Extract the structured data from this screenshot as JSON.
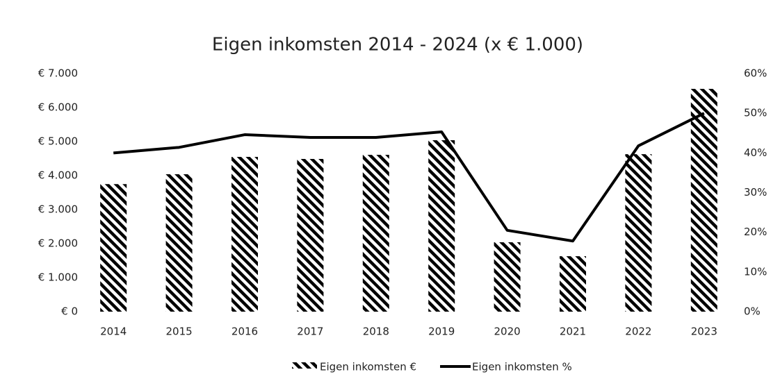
{
  "chart_data": {
    "type": "bar",
    "title": "Eigen inkomsten 2014 - 2024 (x € 1.000)",
    "categories": [
      "2014",
      "2015",
      "2016",
      "2017",
      "2018",
      "2019",
      "2020",
      "2021",
      "2022",
      "2023"
    ],
    "series": [
      {
        "name": "Eigen inkomsten €",
        "type": "bar",
        "color": "#000000",
        "values": [
          3750,
          4040,
          4550,
          4490,
          4610,
          5040,
          2040,
          1630,
          4630,
          6550
        ]
      },
      {
        "name": "Eigen inkomsten %",
        "type": "line",
        "axis": "y2",
        "color": "#000000",
        "values": [
          40.0,
          41.4,
          44.6,
          43.9,
          43.9,
          45.3,
          20.5,
          17.8,
          41.8,
          50.0
        ]
      }
    ],
    "ylim": [
      0,
      7000
    ],
    "yticks": [
      {
        "value": 0,
        "label": "€ 0"
      },
      {
        "value": 1000,
        "label": "€ 1.000"
      },
      {
        "value": 2000,
        "label": "€ 2.000"
      },
      {
        "value": 3000,
        "label": "€ 3.000"
      },
      {
        "value": 4000,
        "label": "€ 4.000"
      },
      {
        "value": 5000,
        "label": "€ 5.000"
      },
      {
        "value": 6000,
        "label": "€ 6.000"
      },
      {
        "value": 7000,
        "label": "€ 7.000"
      }
    ],
    "y2lim": [
      0,
      60
    ],
    "y2ticks": [
      {
        "value": 0,
        "label": "0%"
      },
      {
        "value": 10,
        "label": "10%"
      },
      {
        "value": 20,
        "label": "20%"
      },
      {
        "value": 30,
        "label": "30%"
      },
      {
        "value": 40,
        "label": "40%"
      },
      {
        "value": 50,
        "label": "50%"
      },
      {
        "value": 60,
        "label": "60%"
      }
    ],
    "legend": "bottom"
  }
}
